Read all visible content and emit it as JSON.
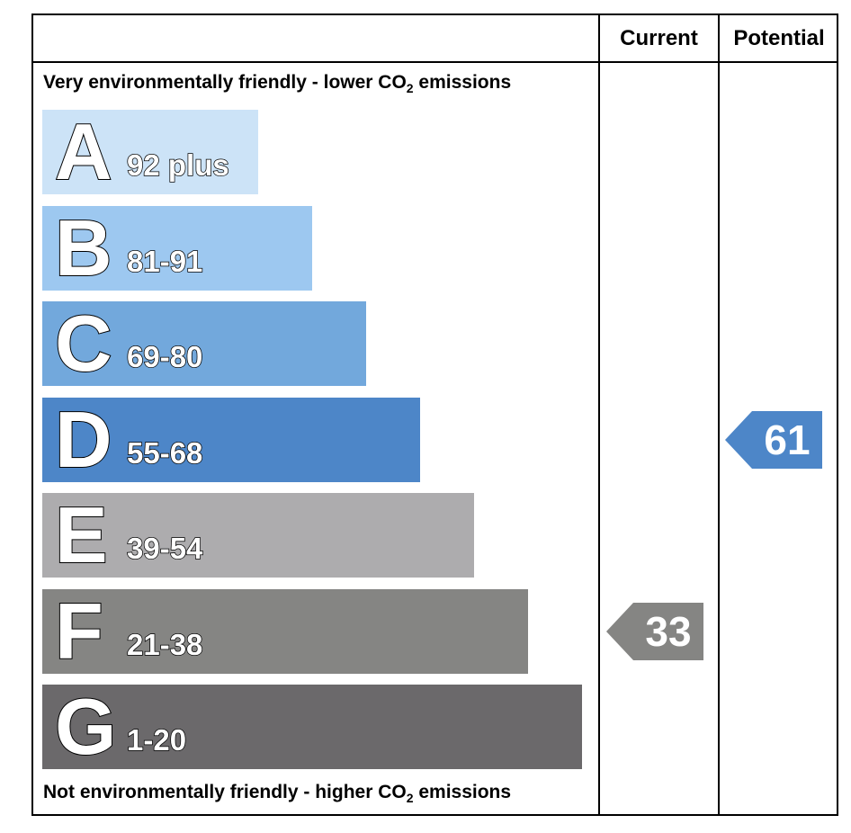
{
  "chart_data": {
    "type": "bar",
    "headers": {
      "current": "Current",
      "potential": "Potential"
    },
    "top_note": {
      "text": "Very environmentally friendly - lower CO",
      "sub": "2",
      "suffix": " emissions"
    },
    "bottom_note": {
      "text": "Not environmentally friendly - higher CO",
      "sub": "2",
      "suffix": " emissions"
    },
    "bands": [
      {
        "letter": "A",
        "range": "92 plus",
        "color": "#cce3f7"
      },
      {
        "letter": "B",
        "range": "81-91",
        "color": "#9dc8f0"
      },
      {
        "letter": "C",
        "range": "69-80",
        "color": "#72a8dc"
      },
      {
        "letter": "D",
        "range": "55-68",
        "color": "#4d86c8"
      },
      {
        "letter": "E",
        "range": "39-54",
        "color": "#adacae"
      },
      {
        "letter": "F",
        "range": "21-38",
        "color": "#858583"
      },
      {
        "letter": "G",
        "range": "1-20",
        "color": "#6b696b"
      }
    ],
    "current": {
      "value": "33",
      "band": "F",
      "color": "#858583"
    },
    "potential": {
      "value": "61",
      "band": "D",
      "color": "#4d86c8"
    }
  }
}
